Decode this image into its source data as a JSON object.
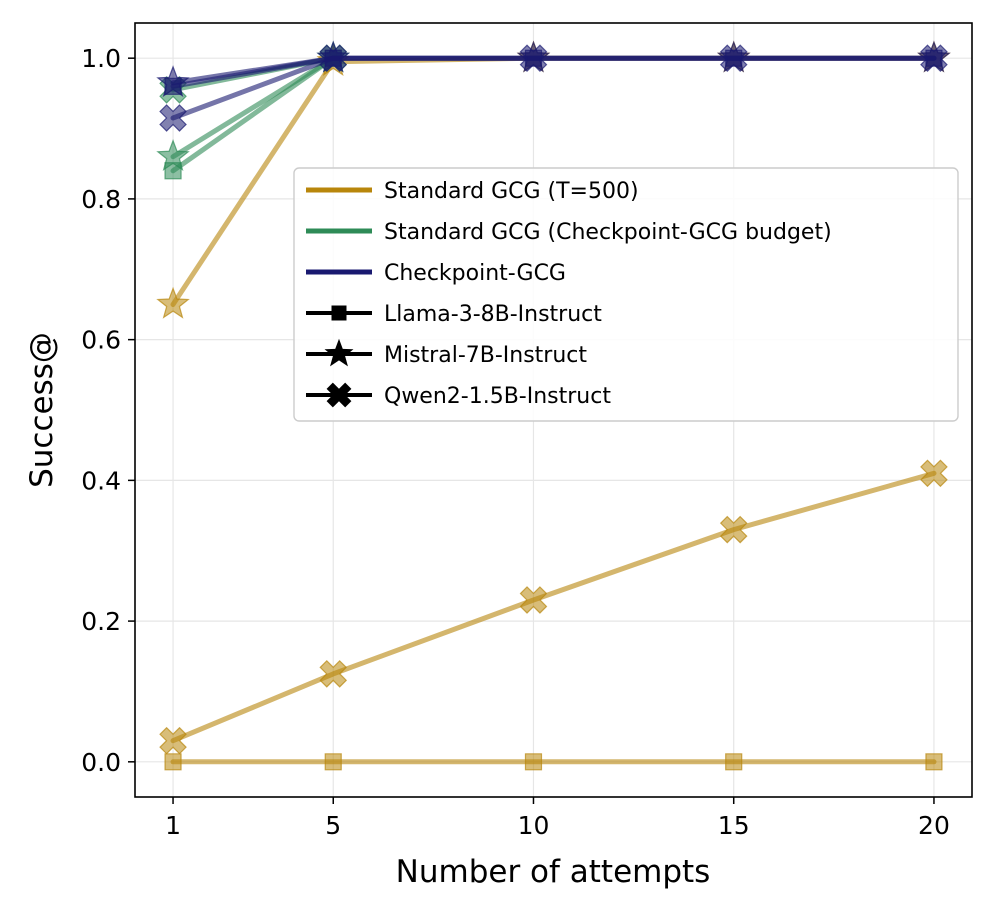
{
  "chart_data": {
    "type": "line",
    "title": "",
    "xlabel": "Number of attempts",
    "ylabel": "Success@",
    "x": [
      1,
      5,
      10,
      15,
      20
    ],
    "xticks": [
      "1",
      "5",
      "10",
      "15",
      "20"
    ],
    "yticks": [
      "0.0",
      "0.2",
      "0.4",
      "0.6",
      "0.8",
      "1.0"
    ],
    "xlim": [
      0.05,
      20.95
    ],
    "ylim": [
      -0.05,
      1.05
    ],
    "grid": true,
    "legend_position": "center-right",
    "methods": [
      {
        "name": "Standard GCG (T=500)",
        "color": "#b8860b"
      },
      {
        "name": "Standard GCG (Checkpoint-GCG budget)",
        "color": "#2e8b57"
      },
      {
        "name": "Checkpoint-GCG",
        "color": "#191970"
      }
    ],
    "models": [
      {
        "name": "Llama-3-8B-Instruct",
        "marker": "square"
      },
      {
        "name": "Mistral-7B-Instruct",
        "marker": "star"
      },
      {
        "name": "Qwen2-1.5B-Instruct",
        "marker": "x"
      }
    ],
    "series": [
      {
        "name": "Standard GCG (T=500) / Llama-3-8B-Instruct",
        "method": 0,
        "model": 0,
        "x": [
          1,
          5,
          10,
          15,
          20
        ],
        "values": [
          0.0,
          0.0,
          0.0,
          0.0,
          0.0
        ]
      },
      {
        "name": "Standard GCG (T=500) / Mistral-7B-Instruct",
        "method": 0,
        "model": 1,
        "x": [
          1,
          5,
          10,
          15,
          20
        ],
        "values": [
          0.65,
          0.995,
          1.0,
          1.0,
          1.0
        ]
      },
      {
        "name": "Standard GCG (T=500) / Qwen2-1.5B-Instruct",
        "method": 0,
        "model": 2,
        "x": [
          1,
          5,
          10,
          15,
          20
        ],
        "values": [
          0.03,
          0.125,
          0.23,
          0.33,
          0.41
        ]
      },
      {
        "name": "Standard GCG (Checkpoint-GCG budget) / Llama-3-8B-Instruct",
        "method": 1,
        "model": 0,
        "x": [
          1,
          5
        ],
        "values": [
          0.84,
          1.0
        ]
      },
      {
        "name": "Standard GCG (Checkpoint-GCG budget) / Mistral-7B-Instruct",
        "method": 1,
        "model": 1,
        "x": [
          1,
          5
        ],
        "values": [
          0.86,
          1.0
        ]
      },
      {
        "name": "Standard GCG (Checkpoint-GCG budget) / Qwen2-1.5B-Instruct",
        "method": 1,
        "model": 2,
        "x": [
          1,
          5
        ],
        "values": [
          0.955,
          1.0
        ]
      },
      {
        "name": "Checkpoint-GCG / Llama-3-8B-Instruct",
        "method": 2,
        "model": 0,
        "x": [
          1,
          5,
          10,
          15,
          20
        ],
        "values": [
          0.96,
          1.0,
          1.0,
          1.0,
          1.0
        ]
      },
      {
        "name": "Checkpoint-GCG / Mistral-7B-Instruct",
        "method": 2,
        "model": 1,
        "x": [
          1,
          5,
          10,
          15,
          20
        ],
        "values": [
          0.965,
          1.0,
          1.0,
          1.0,
          1.0
        ]
      },
      {
        "name": "Checkpoint-GCG / Qwen2-1.5B-Instruct",
        "method": 2,
        "model": 2,
        "x": [
          1,
          5,
          10,
          15,
          20
        ],
        "values": [
          0.915,
          1.0,
          1.0,
          1.0,
          1.0
        ]
      }
    ]
  }
}
